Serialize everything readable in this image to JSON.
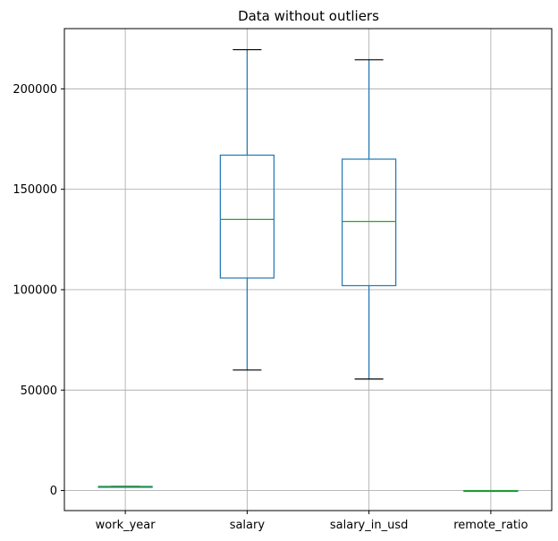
{
  "chart_data": {
    "type": "boxplot",
    "title": "Data without outliers",
    "categories": [
      "work_year",
      "salary",
      "salary_in_usd",
      "remote_ratio"
    ],
    "boxes": [
      {
        "category": "work_year",
        "whisker_low": 2022,
        "q1": 2022,
        "median": 2022,
        "q3": 2023,
        "whisker_high": 2023
      },
      {
        "category": "salary",
        "whisker_low": 60000,
        "q1": 105800,
        "median": 135000,
        "q3": 167000,
        "whisker_high": 219500
      },
      {
        "category": "salary_in_usd",
        "whisker_low": 55500,
        "q1": 102000,
        "median": 134000,
        "q3": 165000,
        "whisker_high": 214500
      },
      {
        "category": "remote_ratio",
        "whisker_low": 0,
        "q1": 0,
        "median": 0,
        "q3": 0,
        "whisker_high": 0
      }
    ],
    "ylim": [
      -10000,
      230000
    ],
    "yticks": [
      0,
      50000,
      100000,
      150000,
      200000
    ],
    "ytick_labels": [
      "0",
      "50000",
      "100000",
      "150000",
      "200000"
    ],
    "grid": true,
    "colors": {
      "box": "#1f77b4",
      "median": "#2ca02c",
      "cap": "#000000",
      "grid": "#b0b0b0"
    }
  }
}
